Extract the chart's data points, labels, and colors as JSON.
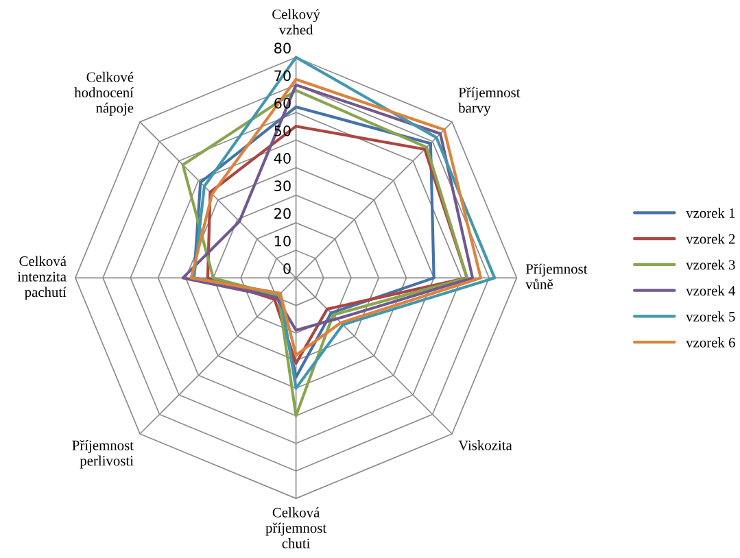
{
  "chart_data": {
    "type": "radar",
    "categories": [
      "Celkový\nvzhed",
      "Příjemnost\nbarvy",
      "Příjemnost\nvůně",
      "Viskozita",
      "Celková\npříjemnost\nchuti",
      "Příjemnost\nperlivosti",
      "Celková\nintenzita\npachutí",
      "Celkové\nhodnocení\nnápoje"
    ],
    "series": [
      {
        "name": "vzorek 1",
        "color": "#4572a7",
        "values": [
          62,
          69,
          50,
          18,
          36,
          9,
          37,
          49
        ]
      },
      {
        "name": "vzorek 2",
        "color": "#aa4643",
        "values": [
          55,
          66,
          62,
          16,
          31,
          11,
          32,
          44
        ]
      },
      {
        "name": "vzorek 3",
        "color": "#89a54e",
        "values": [
          68,
          67,
          62,
          19,
          50,
          9,
          30,
          58
        ]
      },
      {
        "name": "vzorek 4",
        "color": "#71588f",
        "values": [
          70,
          74,
          64,
          21,
          19,
          10,
          41,
          29
        ]
      },
      {
        "name": "vzorek 5",
        "color": "#4198af",
        "values": [
          80,
          72,
          72,
          24,
          40,
          8,
          37,
          47
        ]
      },
      {
        "name": "vzorek 6",
        "color": "#db843d",
        "values": [
          72,
          76,
          67,
          23,
          28,
          8,
          38,
          43
        ]
      }
    ],
    "ylim": [
      0,
      80
    ],
    "yticks": [
      0,
      10,
      20,
      30,
      40,
      50,
      60,
      70,
      80
    ],
    "legend": "right",
    "marker": "none",
    "line_style": "solid"
  }
}
